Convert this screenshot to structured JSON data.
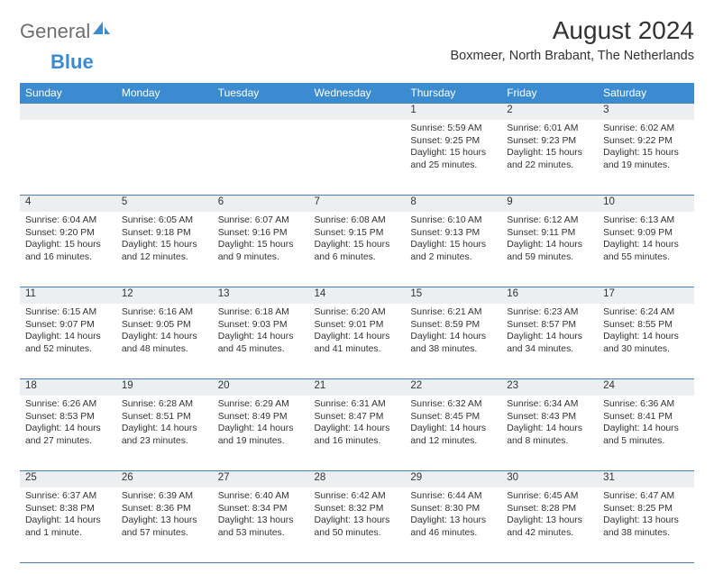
{
  "brand": {
    "text1": "General",
    "text2": "Blue",
    "icon_color": "#3a8bd0",
    "text1_color": "#6f6f6f"
  },
  "title": "August 2024",
  "location": "Boxmeer, North Brabant, The Netherlands",
  "header_bg": "#3a8bd0",
  "header_text_color": "#ffffff",
  "daynum_bg": "#eceef0",
  "border_color": "#4a7fb5",
  "text_color": "#333333",
  "font_size_title": 28,
  "font_size_location": 14.5,
  "font_size_header": 12,
  "font_size_daynum": 11.5,
  "font_size_detail": 10.4,
  "weekdays": [
    "Sunday",
    "Monday",
    "Tuesday",
    "Wednesday",
    "Thursday",
    "Friday",
    "Saturday"
  ],
  "weeks": [
    {
      "days": [
        null,
        null,
        null,
        null,
        {
          "n": "1",
          "sr": "Sunrise: 5:59 AM",
          "ss": "Sunset: 9:25 PM",
          "dl": "Daylight: 15 hours and 25 minutes."
        },
        {
          "n": "2",
          "sr": "Sunrise: 6:01 AM",
          "ss": "Sunset: 9:23 PM",
          "dl": "Daylight: 15 hours and 22 minutes."
        },
        {
          "n": "3",
          "sr": "Sunrise: 6:02 AM",
          "ss": "Sunset: 9:22 PM",
          "dl": "Daylight: 15 hours and 19 minutes."
        }
      ]
    },
    {
      "days": [
        {
          "n": "4",
          "sr": "Sunrise: 6:04 AM",
          "ss": "Sunset: 9:20 PM",
          "dl": "Daylight: 15 hours and 16 minutes."
        },
        {
          "n": "5",
          "sr": "Sunrise: 6:05 AM",
          "ss": "Sunset: 9:18 PM",
          "dl": "Daylight: 15 hours and 12 minutes."
        },
        {
          "n": "6",
          "sr": "Sunrise: 6:07 AM",
          "ss": "Sunset: 9:16 PM",
          "dl": "Daylight: 15 hours and 9 minutes."
        },
        {
          "n": "7",
          "sr": "Sunrise: 6:08 AM",
          "ss": "Sunset: 9:15 PM",
          "dl": "Daylight: 15 hours and 6 minutes."
        },
        {
          "n": "8",
          "sr": "Sunrise: 6:10 AM",
          "ss": "Sunset: 9:13 PM",
          "dl": "Daylight: 15 hours and 2 minutes."
        },
        {
          "n": "9",
          "sr": "Sunrise: 6:12 AM",
          "ss": "Sunset: 9:11 PM",
          "dl": "Daylight: 14 hours and 59 minutes."
        },
        {
          "n": "10",
          "sr": "Sunrise: 6:13 AM",
          "ss": "Sunset: 9:09 PM",
          "dl": "Daylight: 14 hours and 55 minutes."
        }
      ]
    },
    {
      "days": [
        {
          "n": "11",
          "sr": "Sunrise: 6:15 AM",
          "ss": "Sunset: 9:07 PM",
          "dl": "Daylight: 14 hours and 52 minutes."
        },
        {
          "n": "12",
          "sr": "Sunrise: 6:16 AM",
          "ss": "Sunset: 9:05 PM",
          "dl": "Daylight: 14 hours and 48 minutes."
        },
        {
          "n": "13",
          "sr": "Sunrise: 6:18 AM",
          "ss": "Sunset: 9:03 PM",
          "dl": "Daylight: 14 hours and 45 minutes."
        },
        {
          "n": "14",
          "sr": "Sunrise: 6:20 AM",
          "ss": "Sunset: 9:01 PM",
          "dl": "Daylight: 14 hours and 41 minutes."
        },
        {
          "n": "15",
          "sr": "Sunrise: 6:21 AM",
          "ss": "Sunset: 8:59 PM",
          "dl": "Daylight: 14 hours and 38 minutes."
        },
        {
          "n": "16",
          "sr": "Sunrise: 6:23 AM",
          "ss": "Sunset: 8:57 PM",
          "dl": "Daylight: 14 hours and 34 minutes."
        },
        {
          "n": "17",
          "sr": "Sunrise: 6:24 AM",
          "ss": "Sunset: 8:55 PM",
          "dl": "Daylight: 14 hours and 30 minutes."
        }
      ]
    },
    {
      "days": [
        {
          "n": "18",
          "sr": "Sunrise: 6:26 AM",
          "ss": "Sunset: 8:53 PM",
          "dl": "Daylight: 14 hours and 27 minutes."
        },
        {
          "n": "19",
          "sr": "Sunrise: 6:28 AM",
          "ss": "Sunset: 8:51 PM",
          "dl": "Daylight: 14 hours and 23 minutes."
        },
        {
          "n": "20",
          "sr": "Sunrise: 6:29 AM",
          "ss": "Sunset: 8:49 PM",
          "dl": "Daylight: 14 hours and 19 minutes."
        },
        {
          "n": "21",
          "sr": "Sunrise: 6:31 AM",
          "ss": "Sunset: 8:47 PM",
          "dl": "Daylight: 14 hours and 16 minutes."
        },
        {
          "n": "22",
          "sr": "Sunrise: 6:32 AM",
          "ss": "Sunset: 8:45 PM",
          "dl": "Daylight: 14 hours and 12 minutes."
        },
        {
          "n": "23",
          "sr": "Sunrise: 6:34 AM",
          "ss": "Sunset: 8:43 PM",
          "dl": "Daylight: 14 hours and 8 minutes."
        },
        {
          "n": "24",
          "sr": "Sunrise: 6:36 AM",
          "ss": "Sunset: 8:41 PM",
          "dl": "Daylight: 14 hours and 5 minutes."
        }
      ]
    },
    {
      "days": [
        {
          "n": "25",
          "sr": "Sunrise: 6:37 AM",
          "ss": "Sunset: 8:38 PM",
          "dl": "Daylight: 14 hours and 1 minute."
        },
        {
          "n": "26",
          "sr": "Sunrise: 6:39 AM",
          "ss": "Sunset: 8:36 PM",
          "dl": "Daylight: 13 hours and 57 minutes."
        },
        {
          "n": "27",
          "sr": "Sunrise: 6:40 AM",
          "ss": "Sunset: 8:34 PM",
          "dl": "Daylight: 13 hours and 53 minutes."
        },
        {
          "n": "28",
          "sr": "Sunrise: 6:42 AM",
          "ss": "Sunset: 8:32 PM",
          "dl": "Daylight: 13 hours and 50 minutes."
        },
        {
          "n": "29",
          "sr": "Sunrise: 6:44 AM",
          "ss": "Sunset: 8:30 PM",
          "dl": "Daylight: 13 hours and 46 minutes."
        },
        {
          "n": "30",
          "sr": "Sunrise: 6:45 AM",
          "ss": "Sunset: 8:28 PM",
          "dl": "Daylight: 13 hours and 42 minutes."
        },
        {
          "n": "31",
          "sr": "Sunrise: 6:47 AM",
          "ss": "Sunset: 8:25 PM",
          "dl": "Daylight: 13 hours and 38 minutes."
        }
      ]
    }
  ]
}
